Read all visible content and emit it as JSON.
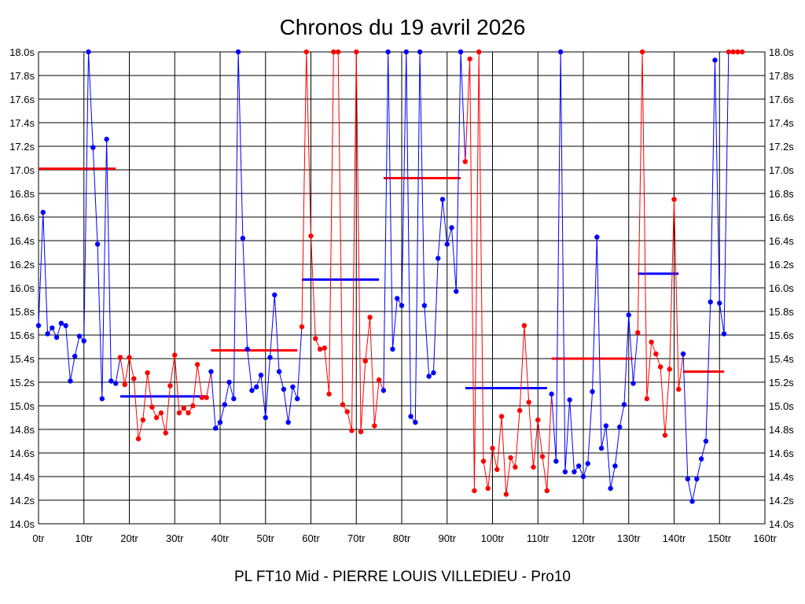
{
  "chart_data": {
    "type": "line",
    "title": "Chronos du 19 avril 2026",
    "subtitle": "PL FT10 Mid - PIERRE LOUIS VILLEDIEU - Pro10",
    "xlabel": "",
    "ylabel": "",
    "xlim": [
      0,
      160
    ],
    "ylim": [
      14.0,
      18.0
    ],
    "x_ticks": [
      "0tr",
      "10tr",
      "20tr",
      "30tr",
      "40tr",
      "50tr",
      "60tr",
      "70tr",
      "80tr",
      "90tr",
      "100tr",
      "110tr",
      "120tr",
      "130tr",
      "140tr",
      "150tr",
      "160tr"
    ],
    "y_ticks": [
      "14.0s",
      "14.2s",
      "14.4s",
      "14.6s",
      "14.8s",
      "15.0s",
      "15.2s",
      "15.4s",
      "15.6s",
      "15.8s",
      "16.0s",
      "16.2s",
      "16.4s",
      "16.6s",
      "16.8s",
      "17.0s",
      "17.2s",
      "17.4s",
      "17.6s",
      "17.8s",
      "18.0s"
    ],
    "grid": true,
    "colors": {
      "blue": "#0000ff",
      "red": "#ff0000",
      "grid": "#000000"
    },
    "series": [
      {
        "color": "blue",
        "x": [
          0,
          1,
          2,
          3,
          4,
          5,
          6,
          7,
          8,
          9,
          10,
          11,
          12,
          13,
          14,
          15,
          16,
          17
        ],
        "y": [
          15.68,
          16.64,
          15.61,
          15.66,
          15.58,
          15.7,
          15.68,
          15.21,
          15.42,
          15.59,
          15.55,
          18.0,
          17.19,
          16.37,
          15.06,
          17.26,
          15.21,
          15.19
        ],
        "avg": 17.01
      },
      {
        "color": "red",
        "x": [
          18,
          19,
          20,
          21,
          22,
          23,
          24,
          25,
          26,
          27,
          28,
          29,
          30,
          31,
          32,
          33,
          34,
          35,
          36,
          37
        ],
        "y": [
          15.41,
          15.18,
          15.41,
          15.23,
          14.72,
          14.88,
          15.28,
          14.99,
          14.9,
          14.94,
          14.77,
          15.17,
          15.43,
          14.94,
          14.98,
          14.94,
          15.0,
          15.35,
          15.07,
          15.07
        ],
        "avg": 15.08
      },
      {
        "color": "blue",
        "x": [
          38,
          39,
          40,
          41,
          42,
          43,
          44,
          45,
          46,
          47,
          48,
          49,
          50,
          51,
          52,
          53,
          54,
          55,
          56,
          57
        ],
        "y": [
          15.29,
          14.81,
          14.86,
          15.01,
          15.2,
          15.06,
          18.0,
          16.42,
          15.48,
          15.13,
          15.16,
          15.26,
          14.9,
          15.41,
          15.94,
          15.29,
          15.14,
          14.86,
          15.16,
          15.06
        ],
        "avg": 15.08
      },
      {
        "color": "red",
        "x": [
          58,
          59,
          60,
          61,
          62,
          63,
          64,
          65,
          66,
          67,
          68,
          69,
          70,
          71,
          72,
          73,
          74,
          75
        ],
        "y": [
          15.67,
          18.0,
          16.44,
          15.57,
          15.48,
          15.49,
          15.1,
          18.0,
          18.0,
          15.01,
          14.95,
          14.79,
          18.0,
          14.78,
          15.38,
          15.75,
          14.83,
          15.22
        ],
        "avg": 15.47
      },
      {
        "color": "blue",
        "x": [
          76,
          77,
          78,
          79,
          80,
          81,
          82,
          83,
          84,
          85,
          86,
          87,
          88,
          89,
          90,
          91,
          92,
          93
        ],
        "y": [
          15.13,
          18.0,
          15.48,
          15.91,
          15.85,
          18.0,
          14.91,
          14.86,
          18.0,
          15.85,
          15.25,
          15.28,
          16.25,
          16.75,
          16.37,
          16.51,
          15.97,
          18.0
        ],
        "avg": 16.07
      },
      {
        "color": "red",
        "x": [
          94,
          95,
          96,
          97,
          98,
          99,
          100,
          101,
          102,
          103,
          104,
          105,
          106,
          107,
          108,
          109,
          110,
          111,
          112
        ],
        "y": [
          17.07,
          17.94,
          14.28,
          18.0,
          14.53,
          14.3,
          14.64,
          14.46,
          14.91,
          14.25,
          14.56,
          14.48,
          14.96,
          15.68,
          15.03,
          14.48,
          14.88,
          14.57,
          14.28
        ],
        "avg": 16.93
      },
      {
        "color": "blue",
        "x": [
          113,
          114,
          115,
          116,
          117,
          118,
          119,
          120,
          121,
          122,
          123,
          124,
          125,
          126,
          127,
          128,
          129,
          130,
          131
        ],
        "y": [
          15.1,
          14.53,
          18.0,
          14.44,
          15.05,
          14.44,
          14.49,
          14.4,
          14.51,
          15.12,
          16.43,
          14.64,
          14.83,
          14.3,
          14.49,
          14.82,
          15.01,
          15.77,
          15.19
        ],
        "avg": 15.15
      },
      {
        "color": "red",
        "x": [
          132,
          133,
          134,
          135,
          136,
          137,
          138,
          139,
          140,
          141
        ],
        "y": [
          15.62,
          18.0,
          15.06,
          15.54,
          15.44,
          15.33,
          14.75,
          15.31,
          16.75,
          15.14
        ],
        "avg": 15.4
      },
      {
        "color": "blue",
        "x": [
          142,
          143,
          144,
          145,
          146,
          147,
          148,
          149,
          150,
          151
        ],
        "y": [
          15.44,
          14.38,
          14.19,
          14.38,
          14.55,
          14.7,
          15.88,
          17.93,
          15.87,
          15.61
        ],
        "avg": 16.12
      },
      {
        "color": "red",
        "x": [
          152,
          153,
          154,
          155
        ],
        "y": [
          18.0,
          18.0,
          18.0,
          18.0
        ],
        "avg": 15.29
      }
    ],
    "averages": [
      {
        "color": "red",
        "x_start": 0,
        "x_end": 17,
        "y": 17.01
      },
      {
        "color": "blue",
        "x_start": 18,
        "x_end": 37,
        "y": 15.08
      },
      {
        "color": "red",
        "x_start": 38,
        "x_end": 57,
        "y": 15.47
      },
      {
        "color": "blue",
        "x_start": 58,
        "x_end": 75,
        "y": 16.07
      },
      {
        "color": "red",
        "x_start": 76,
        "x_end": 93,
        "y": 16.93
      },
      {
        "color": "blue",
        "x_start": 94,
        "x_end": 112,
        "y": 15.15
      },
      {
        "color": "red",
        "x_start": 113,
        "x_end": 131,
        "y": 15.4
      },
      {
        "color": "blue",
        "x_start": 132,
        "x_end": 141,
        "y": 16.12
      },
      {
        "color": "red",
        "x_start": 142,
        "x_end": 151,
        "y": 15.29
      }
    ]
  }
}
